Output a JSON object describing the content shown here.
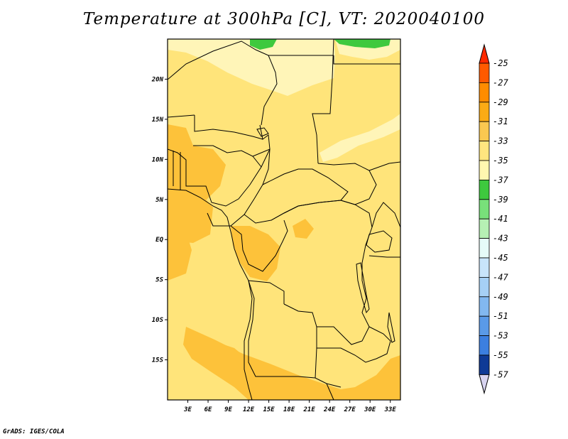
{
  "title": "Temperature at 300hPa [C], VT: 2020040100",
  "credit": "GrADS: IGES/COLA",
  "map": {
    "lon_range": [
      0,
      34.5
    ],
    "lat_range": [
      -20,
      25
    ],
    "x_ticks": [
      {
        "value": 3,
        "label": "3E"
      },
      {
        "value": 6,
        "label": "6E"
      },
      {
        "value": 9,
        "label": "9E"
      },
      {
        "value": 12,
        "label": "12E"
      },
      {
        "value": 15,
        "label": "15E"
      },
      {
        "value": 18,
        "label": "18E"
      },
      {
        "value": 21,
        "label": "21E"
      },
      {
        "value": 24,
        "label": "24E"
      },
      {
        "value": 27,
        "label": "27E"
      },
      {
        "value": 30,
        "label": "30E"
      },
      {
        "value": 33,
        "label": "33E"
      }
    ],
    "y_ticks": [
      {
        "value": 20,
        "label": "20N"
      },
      {
        "value": 15,
        "label": "15N"
      },
      {
        "value": 10,
        "label": "10N"
      },
      {
        "value": 5,
        "label": "5N"
      },
      {
        "value": 0,
        "label": "EQ"
      },
      {
        "value": -5,
        "label": "5S"
      },
      {
        "value": -10,
        "label": "10S"
      },
      {
        "value": -15,
        "label": "15S"
      }
    ],
    "colors": {
      "c_m35": "#fff5b8",
      "c_m33": "#ffe47a",
      "c_m31": "#fdc23a",
      "c_m37": "#3ec93e",
      "border": "#000000"
    }
  },
  "colorbar": {
    "labels": [
      "-25",
      "-27",
      "-29",
      "-31",
      "-33",
      "-35",
      "-37",
      "-39",
      "-41",
      "-43",
      "-45",
      "-47",
      "-49",
      "-51",
      "-53",
      "-55",
      "-57"
    ],
    "colors": [
      "#ff5a00",
      "#ff8c00",
      "#fbab15",
      "#fbc850",
      "#ffe57f",
      "#fff7b0",
      "#3ec93e",
      "#78e07a",
      "#b6f0b4",
      "#e6fbf8",
      "#c8e4fa",
      "#a6d0f5",
      "#82b8f0",
      "#5a9ae8",
      "#3c7fe0",
      "#1f5fc8",
      "#0f3a96"
    ],
    "top_color": "#ff2a00",
    "bottom_color": "#d8d4f0"
  }
}
